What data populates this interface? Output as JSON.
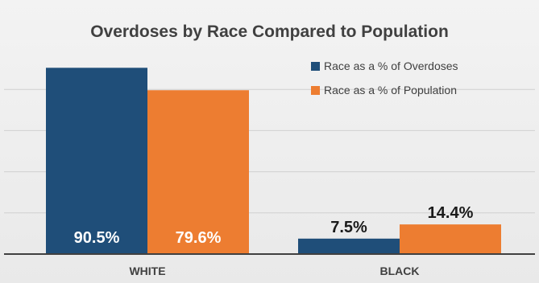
{
  "chart_data": {
    "type": "bar",
    "title": "Overdoses by Race Compared to Population",
    "categories": [
      "WHITE",
      "BLACK"
    ],
    "series": [
      {
        "name": "Race as a % of Overdoses",
        "values": [
          90.5,
          7.5
        ],
        "labels": [
          "90.5%",
          "7.5%"
        ],
        "color": "#1f4e79"
      },
      {
        "name": "Race as a % of Population",
        "values": [
          79.6,
          14.4
        ],
        "labels": [
          "79.6%",
          "14.4%"
        ],
        "color": "#ed7d31"
      }
    ],
    "ylim": [
      0,
      100
    ],
    "grid": true,
    "legend": "top-right",
    "gridline_color": "#d0d0d0",
    "axis_color": "#404040"
  }
}
